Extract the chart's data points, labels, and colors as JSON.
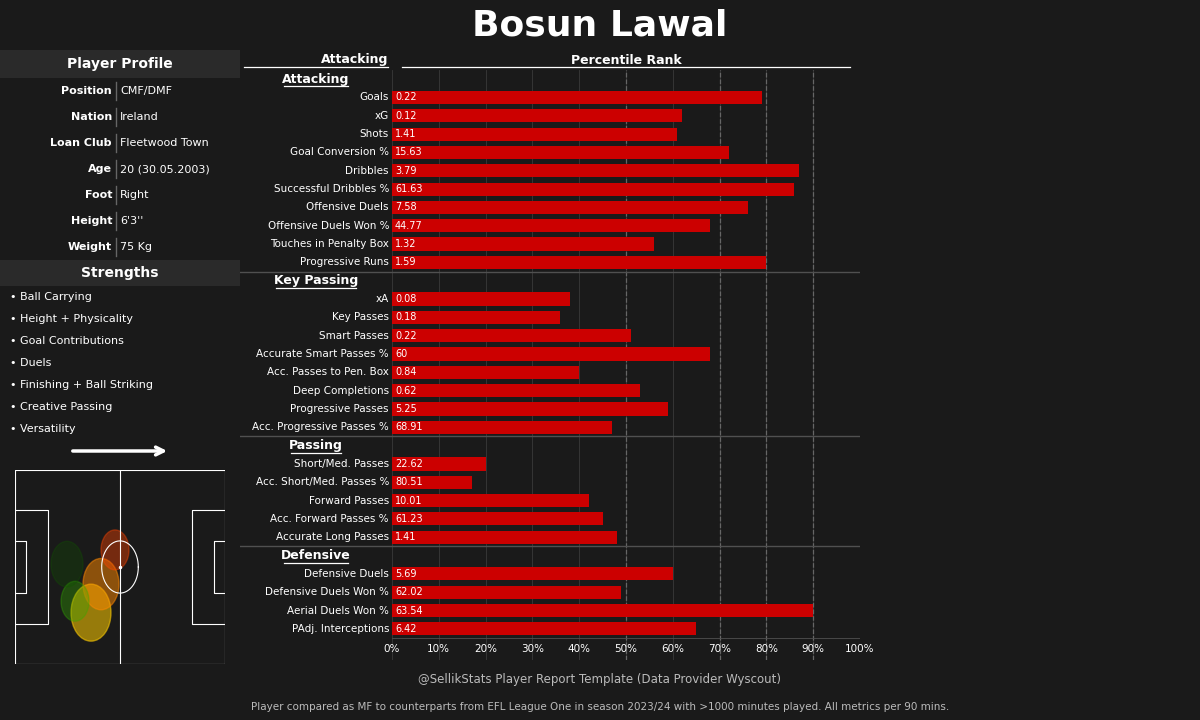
{
  "title": "Bosun Lawal",
  "player_profile": {
    "Position": "CMF/DMF",
    "Nation": "Ireland",
    "Loan Club": "Fleetwood Town",
    "Age": "20 (30.05.2003)",
    "Foot": "Right",
    "Height": "6'3''",
    "Weight": "75 Kg"
  },
  "strengths": [
    "Ball Carrying",
    "Height + Physicality",
    "Goal Contributions",
    "Duels",
    "Finishing + Ball Striking",
    "Creative Passing",
    "Versatility"
  ],
  "sections": [
    {
      "name": "Attacking",
      "metrics": [
        {
          "label": "Goals",
          "value": "0.22",
          "percentile": 79
        },
        {
          "label": "xG",
          "value": "0.12",
          "percentile": 62
        },
        {
          "label": "Shots",
          "value": "1.41",
          "percentile": 61
        },
        {
          "label": "Goal Conversion %",
          "value": "15.63",
          "percentile": 72
        },
        {
          "label": "Dribbles",
          "value": "3.79",
          "percentile": 87
        },
        {
          "label": "Successful Dribbles %",
          "value": "61.63",
          "percentile": 86
        },
        {
          "label": "Offensive Duels",
          "value": "7.58",
          "percentile": 76
        },
        {
          "label": "Offensive Duels Won %",
          "value": "44.77",
          "percentile": 68
        },
        {
          "label": "Touches in Penalty Box",
          "value": "1.32",
          "percentile": 56
        },
        {
          "label": "Progressive Runs",
          "value": "1.59",
          "percentile": 80
        }
      ]
    },
    {
      "name": "Key Passing",
      "metrics": [
        {
          "label": "xA",
          "value": "0.08",
          "percentile": 38
        },
        {
          "label": "Key Passes",
          "value": "0.18",
          "percentile": 36
        },
        {
          "label": "Smart Passes",
          "value": "0.22",
          "percentile": 51
        },
        {
          "label": "Accurate Smart Passes %",
          "value": "60",
          "percentile": 68
        },
        {
          "label": "Acc. Passes to Pen. Box",
          "value": "0.84",
          "percentile": 40
        },
        {
          "label": "Deep Completions",
          "value": "0.62",
          "percentile": 53
        },
        {
          "label": "Progressive Passes",
          "value": "5.25",
          "percentile": 59
        },
        {
          "label": "Acc. Progressive Passes %",
          "value": "68.91",
          "percentile": 47
        }
      ]
    },
    {
      "name": "Passing",
      "metrics": [
        {
          "label": "Short/Med. Passes",
          "value": "22.62",
          "percentile": 20
        },
        {
          "label": "Acc. Short/Med. Passes %",
          "value": "80.51",
          "percentile": 17
        },
        {
          "label": "Forward Passes",
          "value": "10.01",
          "percentile": 42
        },
        {
          "label": "Acc. Forward Passes %",
          "value": "61.23",
          "percentile": 45
        },
        {
          "label": "Accurate Long Passes",
          "value": "1.41",
          "percentile": 48
        }
      ]
    },
    {
      "name": "Defensive",
      "metrics": [
        {
          "label": "Defensive Duels",
          "value": "5.69",
          "percentile": 60
        },
        {
          "label": "Defensive Duels Won %",
          "value": "62.02",
          "percentile": 49
        },
        {
          "label": "Aerial Duels Won %",
          "value": "63.54",
          "percentile": 90
        },
        {
          "label": "PAdj. Interceptions",
          "value": "6.42",
          "percentile": 65
        }
      ]
    }
  ],
  "footer1": "@SellikStats Player Report Template (Data Provider Wyscout)",
  "footer2": "Player compared as MF to counterparts from EFL League One in season 2023/24 with >1000 minutes played. All metrics per 90 mins.",
  "bg_color": "#1a1a1a",
  "chart_bg": "#1e1e1e",
  "left_bg": "#1a1a1a",
  "bar_color": "#cc0000",
  "text_color": "#ffffff",
  "grid_color": "#3a3a3a",
  "sep_color": "#555555",
  "photo_bg": "#8b1a1a",
  "profile_header_bg": "#2a2a2a",
  "strengths_header_bg": "#2a2a2a"
}
